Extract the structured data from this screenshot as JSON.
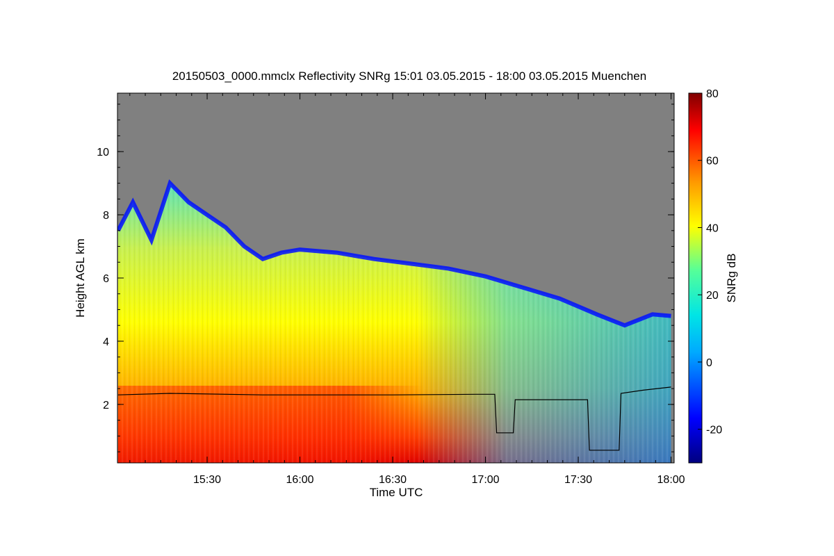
{
  "chart_data": {
    "type": "heatmap",
    "title": "20150503_0000.mmclx Reflectivity SNRg   15:01 03.05.2015 - 18:00 03.05.2015 Muenchen",
    "xlabel": "Time UTC",
    "ylabel": "Height AGL km",
    "colorbar_label": "SNRg dB",
    "x_tick_labels": [
      "15:30",
      "16:00",
      "16:30",
      "17:00",
      "17:30",
      "18:00"
    ],
    "x_tick_hours": [
      15.5,
      16.0,
      16.5,
      17.0,
      17.5,
      18.0
    ],
    "xlim_hours": [
      15.0167,
      18.0167
    ],
    "y_ticks": [
      2,
      4,
      6,
      8,
      10
    ],
    "ylim": [
      0.15,
      11.85
    ],
    "colorbar_ticks": [
      -20,
      0,
      20,
      40,
      60,
      80
    ],
    "colorbar_range": [
      -30,
      80
    ],
    "background_color": "#808080",
    "cloud_top_km": [
      [
        15.02,
        7.5
      ],
      [
        15.1,
        8.4
      ],
      [
        15.2,
        7.2
      ],
      [
        15.3,
        9.0
      ],
      [
        15.4,
        8.4
      ],
      [
        15.5,
        8.0
      ],
      [
        15.6,
        7.6
      ],
      [
        15.7,
        7.0
      ],
      [
        15.8,
        6.6
      ],
      [
        15.9,
        6.8
      ],
      [
        16.0,
        6.9
      ],
      [
        16.2,
        6.8
      ],
      [
        16.4,
        6.6
      ],
      [
        16.6,
        6.45
      ],
      [
        16.8,
        6.3
      ],
      [
        17.0,
        6.05
      ],
      [
        17.2,
        5.7
      ],
      [
        17.4,
        5.35
      ],
      [
        17.6,
        4.85
      ],
      [
        17.75,
        4.5
      ],
      [
        17.9,
        4.85
      ],
      [
        18.0,
        4.8
      ]
    ],
    "secondary_series_km": [
      [
        15.02,
        2.3
      ],
      [
        15.3,
        2.35
      ],
      [
        15.8,
        2.3
      ],
      [
        16.5,
        2.3
      ],
      [
        16.95,
        2.32
      ],
      [
        17.05,
        2.32
      ],
      [
        17.06,
        1.1
      ],
      [
        17.15,
        1.1
      ],
      [
        17.16,
        2.15
      ],
      [
        17.5,
        2.15
      ],
      [
        17.55,
        2.15
      ],
      [
        17.56,
        0.55
      ],
      [
        17.72,
        0.55
      ],
      [
        17.73,
        2.35
      ],
      [
        17.85,
        2.45
      ],
      [
        18.0,
        2.55
      ]
    ],
    "grid": false,
    "colormap": "jet"
  }
}
